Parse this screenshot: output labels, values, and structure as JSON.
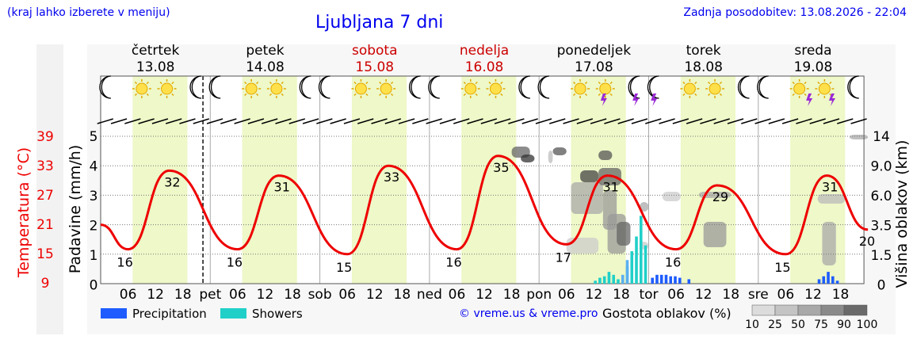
{
  "header": {
    "menu_hint": "(kraj lahko izberete v meniju)",
    "title": "Ljubljana 7 dni",
    "updated": "Zadnja posodobitev: 13.08.2026 - 22:04"
  },
  "days": [
    {
      "name": "četrtek",
      "date": "13.08",
      "weekend": false,
      "abbr": "pet"
    },
    {
      "name": "petek",
      "date": "14.08",
      "weekend": false,
      "abbr": "sob"
    },
    {
      "name": "sobota",
      "date": "15.08",
      "weekend": true,
      "abbr": "ned"
    },
    {
      "name": "nedelja",
      "date": "16.08",
      "weekend": true,
      "abbr": "pon"
    },
    {
      "name": "ponedeljek",
      "date": "17.08",
      "weekend": false,
      "abbr": "tor"
    },
    {
      "name": "torek",
      "date": "18.08",
      "weekend": false,
      "abbr": "sre"
    },
    {
      "name": "sreda",
      "date": "19.08",
      "weekend": false,
      "abbr": ""
    }
  ],
  "axes": {
    "temp_label": "Temperatura (°C)",
    "temp_ticks": [
      "39",
      "33",
      "27",
      "21",
      "15",
      "9"
    ],
    "precip_label": "Padavine (mm/h)",
    "precip_ticks": [
      "5",
      "4",
      "3",
      "2",
      "1",
      "0"
    ],
    "cloud_label": "Višina oblakov (km)",
    "cloud_ticks": [
      "14",
      "9.0",
      "6.0",
      "3.5",
      "1.5",
      "0"
    ],
    "hour_ticks": [
      "06",
      "12",
      "18"
    ]
  },
  "legend": {
    "precip": "Precipitation",
    "showers": "Showers",
    "credit": "© vreme.us & vreme.pro",
    "density_label": "Gostota oblakov (%)",
    "density_ticks": [
      "10",
      "25",
      "50",
      "75",
      "90",
      "100"
    ]
  },
  "colors": {
    "temp": "#ee0000",
    "precip": "#1e5cff",
    "showers": "#20d0c8",
    "day_band": "#eef8c8",
    "weekend": "#cc0000"
  },
  "chart_data": {
    "type": "line",
    "title": "Ljubljana 7 dni",
    "ylabel": "Temperatura (°C)",
    "ylim": [
      9,
      39
    ],
    "temperature_extremes": [
      {
        "day": "13.08",
        "min": 16,
        "max": 32
      },
      {
        "day": "14.08",
        "min": 16,
        "max": 31
      },
      {
        "day": "15.08",
        "min": 15,
        "max": 33
      },
      {
        "day": "16.08",
        "min": 16,
        "max": 35
      },
      {
        "day": "17.08",
        "min": 17,
        "max": 31
      },
      {
        "day": "18.08",
        "min": 16,
        "max": 29
      },
      {
        "day": "19.08",
        "min": 15,
        "max": 31
      },
      {
        "day": "end",
        "value": 20
      }
    ],
    "precipitation": [
      {
        "day": "17.08",
        "hour": "12–18",
        "max_mm_h": 0.4,
        "type": "Showers"
      },
      {
        "day": "17.08",
        "hour": "18–24",
        "max_mm_h": 2.3,
        "type": "Showers"
      },
      {
        "day": "18.08",
        "hour": "06–12",
        "max_mm_h": 0.3,
        "type": "Precipitation"
      },
      {
        "day": "19.08",
        "hour": "12–18",
        "max_mm_h": 0.4,
        "type": "Precipitation"
      }
    ]
  }
}
